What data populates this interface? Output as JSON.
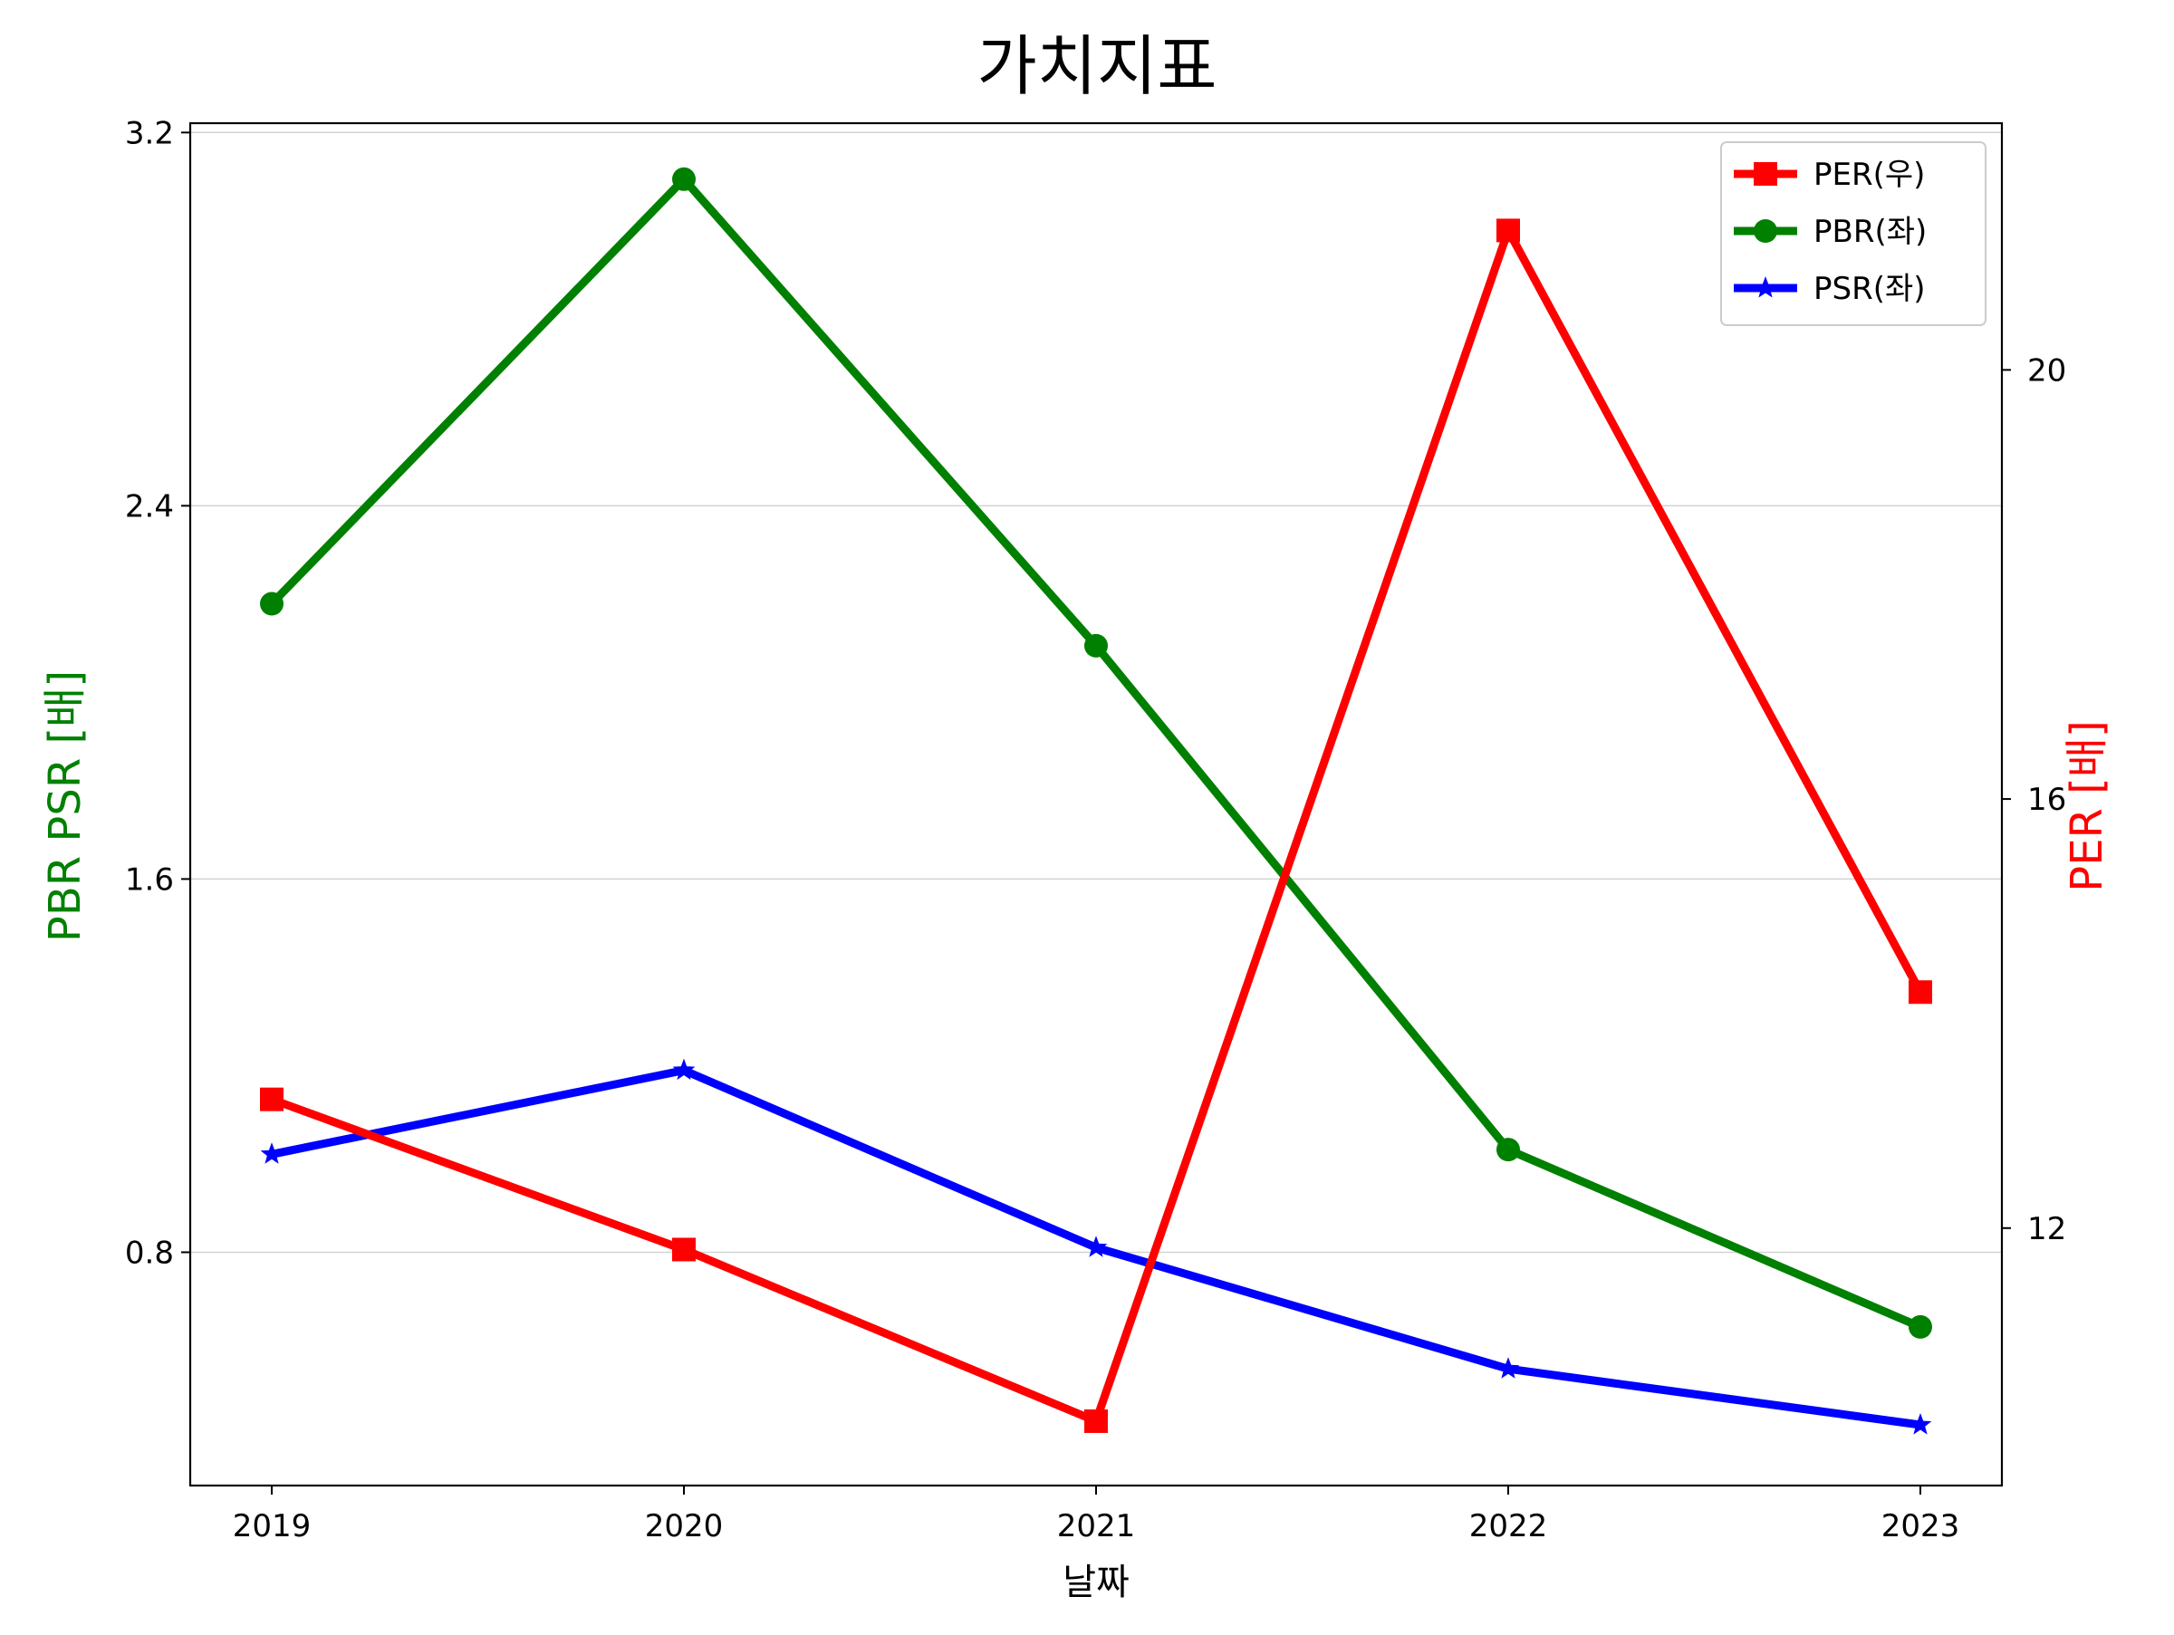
{
  "chart_data": {
    "type": "line",
    "title": "가치지표",
    "xlabel": "날짜",
    "ylabel_left": "PBR PSR [배]",
    "ylabel_right": "PER [배]",
    "categories": [
      "2019",
      "2020",
      "2021",
      "2022",
      "2023"
    ],
    "left_axis": {
      "ylim": [
        0.3,
        3.22
      ],
      "ticks": [
        "0.8",
        "1.6",
        "2.4",
        "3.2"
      ]
    },
    "right_axis": {
      "ylim": [
        9.6,
        22.3
      ],
      "ticks": [
        "12",
        "16",
        "20"
      ]
    },
    "grid": "horizontal-left",
    "legend_position": "top-right",
    "series": [
      {
        "name": "PER(우)",
        "axis": "right",
        "color": "#ff0000",
        "marker": "square",
        "values": [
          13.2,
          11.8,
          10.2,
          21.3,
          14.2
        ]
      },
      {
        "name": "PBR(좌)",
        "axis": "left",
        "color": "#008000",
        "marker": "circle",
        "values": [
          2.19,
          3.1,
          2.1,
          1.02,
          0.64
        ]
      },
      {
        "name": "PSR(좌)",
        "axis": "left",
        "color": "#0000ff",
        "marker": "star",
        "values": [
          1.01,
          1.19,
          0.81,
          0.55,
          0.43
        ]
      }
    ]
  }
}
